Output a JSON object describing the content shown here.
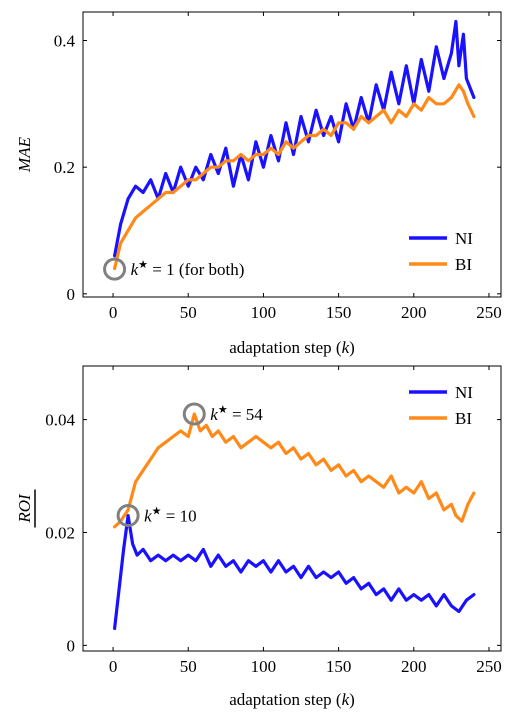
{
  "colors": {
    "ni": "#1a12ff",
    "bi": "#ff8a1a",
    "marker": "#808080"
  },
  "chart_data": [
    {
      "type": "line",
      "ylabel": "MAE",
      "xlabel": "adaptation step (k)",
      "xlim": [
        -20,
        258
      ],
      "ylim": [
        -0.005,
        0.445
      ],
      "xticks": [
        0,
        50,
        100,
        150,
        200,
        250
      ],
      "yticks": [
        0,
        0.2,
        0.4
      ],
      "ytick_labels": [
        "0",
        "0.2",
        "0.4"
      ],
      "legend_position": "bottom-right",
      "series": [
        {
          "name": "NI",
          "color": "#1a12ff",
          "x": [
            1,
            5,
            10,
            15,
            20,
            25,
            30,
            35,
            40,
            45,
            50,
            55,
            60,
            65,
            70,
            75,
            80,
            85,
            90,
            95,
            100,
            105,
            110,
            115,
            120,
            125,
            130,
            135,
            140,
            145,
            150,
            155,
            160,
            165,
            170,
            175,
            180,
            185,
            190,
            195,
            200,
            205,
            210,
            215,
            220,
            225,
            228,
            230,
            233,
            235,
            240
          ],
          "y": [
            0.06,
            0.11,
            0.15,
            0.17,
            0.16,
            0.18,
            0.15,
            0.19,
            0.16,
            0.2,
            0.17,
            0.2,
            0.18,
            0.22,
            0.19,
            0.23,
            0.17,
            0.22,
            0.18,
            0.24,
            0.2,
            0.25,
            0.21,
            0.27,
            0.22,
            0.28,
            0.24,
            0.29,
            0.25,
            0.28,
            0.24,
            0.3,
            0.26,
            0.31,
            0.27,
            0.33,
            0.29,
            0.35,
            0.3,
            0.36,
            0.3,
            0.37,
            0.32,
            0.39,
            0.34,
            0.38,
            0.43,
            0.36,
            0.41,
            0.34,
            0.31
          ]
        },
        {
          "name": "BI",
          "color": "#ff8a1a",
          "x": [
            1,
            5,
            10,
            15,
            20,
            25,
            30,
            35,
            40,
            45,
            50,
            55,
            60,
            65,
            70,
            75,
            80,
            85,
            90,
            95,
            100,
            105,
            110,
            115,
            120,
            125,
            130,
            135,
            140,
            145,
            150,
            155,
            160,
            165,
            170,
            175,
            180,
            185,
            190,
            195,
            200,
            205,
            210,
            215,
            220,
            225,
            230,
            233,
            236,
            240
          ],
          "y": [
            0.04,
            0.08,
            0.1,
            0.12,
            0.13,
            0.14,
            0.15,
            0.16,
            0.16,
            0.17,
            0.18,
            0.18,
            0.19,
            0.2,
            0.2,
            0.21,
            0.21,
            0.22,
            0.21,
            0.22,
            0.22,
            0.23,
            0.22,
            0.24,
            0.23,
            0.24,
            0.25,
            0.25,
            0.26,
            0.25,
            0.27,
            0.27,
            0.26,
            0.28,
            0.27,
            0.28,
            0.29,
            0.27,
            0.29,
            0.28,
            0.3,
            0.29,
            0.31,
            0.3,
            0.3,
            0.31,
            0.33,
            0.32,
            0.3,
            0.28
          ]
        }
      ],
      "annotation": {
        "text": "k* = 1 (for both)",
        "x": 1,
        "y": 0.039
      }
    },
    {
      "type": "line",
      "ylabel": "ROI",
      "xlabel": "adaptation step (k)",
      "xlim": [
        -20,
        258
      ],
      "ylim": [
        -0.001,
        0.0495
      ],
      "xticks": [
        0,
        50,
        100,
        150,
        200,
        250
      ],
      "yticks": [
        0,
        0.02,
        0.04
      ],
      "ytick_labels": [
        "0",
        "0.02",
        "0.04"
      ],
      "legend_position": "top-right",
      "series": [
        {
          "name": "NI",
          "color": "#1a12ff",
          "x": [
            1,
            4,
            7,
            10,
            13,
            16,
            20,
            25,
            30,
            35,
            40,
            45,
            50,
            55,
            60,
            65,
            70,
            75,
            80,
            85,
            90,
            95,
            100,
            105,
            110,
            115,
            120,
            125,
            130,
            135,
            140,
            145,
            150,
            155,
            160,
            165,
            170,
            175,
            180,
            185,
            190,
            195,
            200,
            205,
            210,
            215,
            220,
            225,
            230,
            235,
            240
          ],
          "y": [
            0.003,
            0.01,
            0.017,
            0.023,
            0.018,
            0.016,
            0.017,
            0.015,
            0.016,
            0.015,
            0.016,
            0.015,
            0.016,
            0.015,
            0.017,
            0.014,
            0.016,
            0.014,
            0.015,
            0.013,
            0.015,
            0.014,
            0.015,
            0.013,
            0.015,
            0.013,
            0.014,
            0.012,
            0.014,
            0.012,
            0.013,
            0.012,
            0.013,
            0.011,
            0.012,
            0.01,
            0.011,
            0.009,
            0.01,
            0.008,
            0.01,
            0.008,
            0.009,
            0.008,
            0.009,
            0.007,
            0.009,
            0.007,
            0.006,
            0.008,
            0.009
          ]
        },
        {
          "name": "BI",
          "color": "#ff8a1a",
          "x": [
            1,
            5,
            10,
            15,
            20,
            25,
            30,
            35,
            40,
            45,
            50,
            54,
            58,
            62,
            66,
            70,
            75,
            80,
            85,
            90,
            95,
            100,
            105,
            110,
            115,
            120,
            125,
            130,
            135,
            140,
            145,
            150,
            155,
            160,
            165,
            170,
            175,
            180,
            185,
            190,
            195,
            200,
            205,
            210,
            215,
            220,
            225,
            228,
            232,
            236,
            240
          ],
          "y": [
            0.021,
            0.022,
            0.024,
            0.029,
            0.031,
            0.033,
            0.035,
            0.036,
            0.037,
            0.038,
            0.037,
            0.041,
            0.038,
            0.039,
            0.037,
            0.038,
            0.036,
            0.037,
            0.035,
            0.036,
            0.037,
            0.036,
            0.035,
            0.036,
            0.034,
            0.035,
            0.033,
            0.034,
            0.032,
            0.033,
            0.031,
            0.032,
            0.03,
            0.031,
            0.029,
            0.03,
            0.029,
            0.028,
            0.03,
            0.027,
            0.028,
            0.027,
            0.029,
            0.026,
            0.027,
            0.024,
            0.025,
            0.023,
            0.022,
            0.025,
            0.027
          ]
        }
      ],
      "annotations": [
        {
          "text": "k* = 54",
          "x": 54,
          "y": 0.041
        },
        {
          "text": "k* = 10",
          "x": 10,
          "y": 0.023
        }
      ]
    }
  ]
}
